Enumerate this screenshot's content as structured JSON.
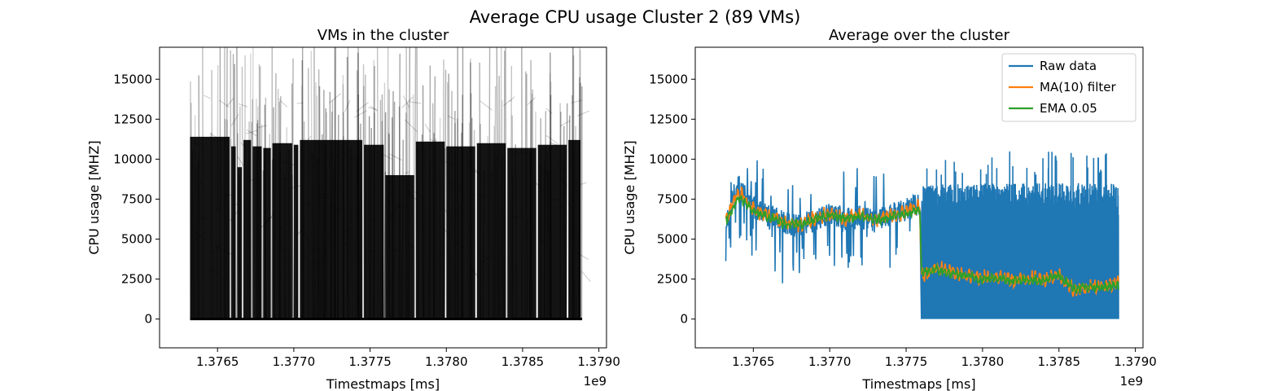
{
  "suptitle": "Average CPU usage Cluster 2 (89 VMs)",
  "chart_data": [
    {
      "type": "line",
      "title": "VMs in the cluster",
      "xlabel": "Timestmaps [ms]",
      "ylabel": "CPU usage [MHZ]",
      "x_offset_label": "1e9",
      "xlim": [
        1.37612,
        1.37905
      ],
      "ylim": [
        -1800,
        17000
      ],
      "xticks": [
        1.3765,
        1.377,
        1.3775,
        1.378,
        1.3785,
        1.379
      ],
      "xtick_labels": [
        "1.3765",
        "1.3770",
        "1.3775",
        "1.3780",
        "1.3785",
        "1.3790"
      ],
      "yticks": [
        0,
        2500,
        5000,
        7500,
        10000,
        12500,
        15000
      ],
      "ytick_labels": [
        "0",
        "2500",
        "5000",
        "7500",
        "10000",
        "12500",
        "15000"
      ],
      "grid": false,
      "series": [
        {
          "color": "#000000",
          "x": [
            1.37632,
            1.37659,
            1.37663,
            1.37667,
            1.37673,
            1.3768,
            1.37686,
            1.377,
            1.37704,
            1.37746,
            1.3776,
            1.3778,
            1.378,
            1.3782,
            1.3784,
            1.3786,
            1.3788,
            1.37889
          ],
          "y": [
            11400,
            10800,
            9500,
            11200,
            10800,
            10700,
            11000,
            10900,
            11200,
            10900,
            9000,
            11100,
            10800,
            11000,
            10700,
            10900,
            11200,
            10800
          ]
        }
      ]
    },
    {
      "type": "line",
      "title": "Average over the cluster",
      "xlabel": "Timestmaps [ms]",
      "ylabel": "CPU usage [MHZ]",
      "x_offset_label": "1e9",
      "xlim": [
        1.37612,
        1.37905
      ],
      "ylim": [
        -1800,
        17000
      ],
      "xticks": [
        1.3765,
        1.377,
        1.3775,
        1.378,
        1.3785,
        1.379
      ],
      "xtick_labels": [
        "1.3765",
        "1.3770",
        "1.3775",
        "1.3780",
        "1.3785",
        "1.3790"
      ],
      "yticks": [
        0,
        2500,
        5000,
        7500,
        10000,
        12500,
        15000
      ],
      "ytick_labels": [
        "0",
        "2500",
        "5000",
        "7500",
        "10000",
        "12500",
        "15000"
      ],
      "grid": false,
      "legend_position": "top-right",
      "series": [
        {
          "name": "Raw data",
          "color": "#1f77b4",
          "x": [
            1.37632,
            1.3764,
            1.3765,
            1.3766,
            1.3767,
            1.3768,
            1.3769,
            1.377,
            1.3771,
            1.3772,
            1.3773,
            1.3774,
            1.3775,
            1.37759,
            1.3776,
            1.3777,
            1.3778,
            1.3779,
            1.378,
            1.3781,
            1.3782,
            1.3783,
            1.3784,
            1.3785,
            1.3786,
            1.3787,
            1.3788,
            1.37889
          ],
          "y": [
            6000,
            8500,
            7000,
            6500,
            6000,
            5800,
            6200,
            6500,
            6300,
            6400,
            6100,
            6500,
            6800,
            7200,
            2500,
            3000,
            2800,
            2600,
            2400,
            2600,
            2300,
            2500,
            2400,
            2700,
            2000,
            2200,
            2100,
            2300
          ]
        },
        {
          "name": "MA(10) filter",
          "color": "#ff7f0e",
          "x": [
            1.37632,
            1.3764,
            1.3765,
            1.3766,
            1.3767,
            1.3768,
            1.3769,
            1.377,
            1.3771,
            1.3772,
            1.3773,
            1.3774,
            1.3775,
            1.37759,
            1.3776,
            1.3777,
            1.3778,
            1.3779,
            1.378,
            1.3781,
            1.3782,
            1.3783,
            1.3784,
            1.3785,
            1.3786,
            1.3787,
            1.3788,
            1.37889
          ],
          "y": [
            6200,
            8000,
            6900,
            6400,
            6000,
            5900,
            6300,
            6600,
            6300,
            6500,
            6200,
            6500,
            6700,
            7000,
            2700,
            3200,
            2900,
            2700,
            2600,
            2700,
            2400,
            2600,
            2500,
            2800,
            1800,
            2000,
            2100,
            2200
          ]
        },
        {
          "name": "EMA 0.05",
          "color": "#2ca02c",
          "x": [
            1.37632,
            1.3764,
            1.3765,
            1.3766,
            1.3767,
            1.3768,
            1.3769,
            1.377,
            1.3771,
            1.3772,
            1.3773,
            1.3774,
            1.3775,
            1.37759,
            1.3776,
            1.3777,
            1.3778,
            1.3779,
            1.378,
            1.3781,
            1.3782,
            1.3783,
            1.3784,
            1.3785,
            1.3786,
            1.3787,
            1.3788,
            1.37889
          ],
          "y": [
            6100,
            7600,
            6800,
            6400,
            6000,
            5900,
            6200,
            6500,
            6300,
            6400,
            6200,
            6400,
            6600,
            6800,
            2900,
            3100,
            2800,
            2700,
            2500,
            2600,
            2400,
            2500,
            2400,
            2700,
            1900,
            2000,
            2000,
            2100
          ]
        }
      ]
    }
  ]
}
